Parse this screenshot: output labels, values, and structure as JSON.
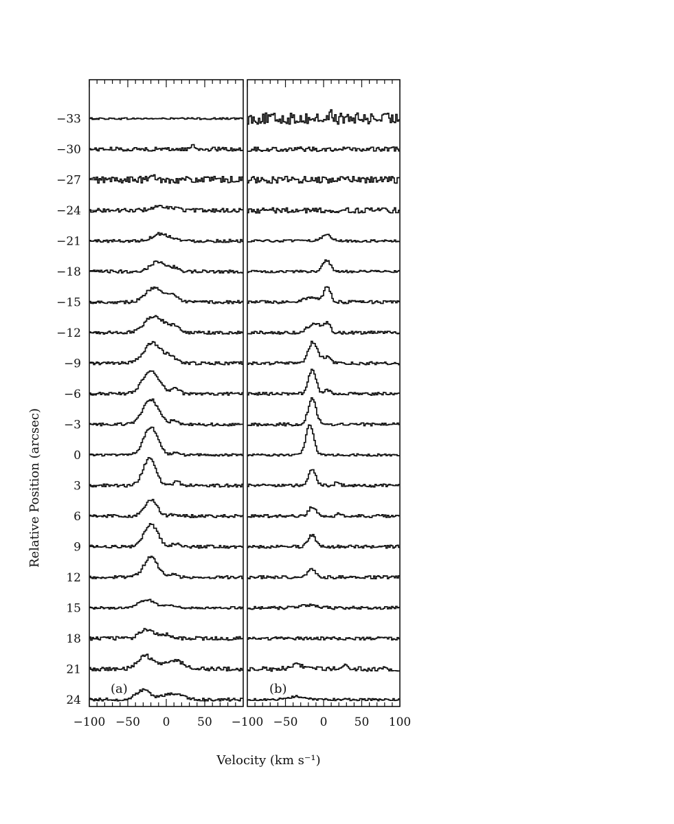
{
  "chart_data": {
    "type": "line",
    "style": "step",
    "xlabel": "Velocity (km s⁻¹)",
    "ylabel": "Relative Position (arcsec)",
    "xlim": [
      -100,
      100
    ],
    "x_tick_labels_panel_a": [
      "−100",
      "−50",
      "0",
      "50"
    ],
    "x_tick_labels_panel_b": [
      "−100",
      "−50",
      "0",
      "50",
      "100"
    ],
    "positions": [
      -33,
      -30,
      -27,
      -24,
      -21,
      -18,
      -15,
      -12,
      -9,
      -6,
      -3,
      0,
      3,
      6,
      9,
      12,
      15,
      18,
      21,
      24
    ],
    "position_tick_labels": [
      "−33",
      "−30",
      "−27",
      "−24",
      "−21",
      "−18",
      "−15",
      "−12",
      "−9",
      "−6",
      "−3",
      "0",
      "3",
      "6",
      "9",
      "12",
      "15",
      "18",
      "21",
      "24"
    ],
    "panels": [
      {
        "label": "(a)",
        "profiles": [
          {
            "position": -33,
            "noise": 0.12,
            "components": []
          },
          {
            "position": -30,
            "noise": 0.25,
            "components": [
              {
                "center": 35,
                "amp": 0.7,
                "width": 2
              }
            ]
          },
          {
            "position": -27,
            "noise": 0.45,
            "components": [
              {
                "center": -18,
                "amp": 0.8,
                "width": 2
              }
            ]
          },
          {
            "position": -24,
            "noise": 0.25,
            "components": [
              {
                "center": -10,
                "amp": 0.45,
                "width": 10
              },
              {
                "center": 12,
                "amp": 0.3,
                "width": 6
              }
            ]
          },
          {
            "position": -21,
            "noise": 0.2,
            "components": [
              {
                "center": -8,
                "amp": 0.95,
                "width": 10
              },
              {
                "center": 10,
                "amp": 0.25,
                "width": 6
              }
            ]
          },
          {
            "position": -18,
            "noise": 0.2,
            "components": [
              {
                "center": -10,
                "amp": 1.35,
                "width": 10
              },
              {
                "center": 12,
                "amp": 0.45,
                "width": 5
              }
            ]
          },
          {
            "position": -15,
            "noise": 0.2,
            "components": [
              {
                "center": -15,
                "amp": 1.95,
                "width": 11
              },
              {
                "center": 8,
                "amp": 0.75,
                "width": 7
              }
            ]
          },
          {
            "position": -12,
            "noise": 0.2,
            "components": [
              {
                "center": -16,
                "amp": 2.2,
                "width": 12
              },
              {
                "center": 10,
                "amp": 0.8,
                "width": 8
              }
            ]
          },
          {
            "position": -9,
            "noise": 0.2,
            "components": [
              {
                "center": -18,
                "amp": 2.65,
                "width": 11
              },
              {
                "center": 6,
                "amp": 0.8,
                "width": 8
              }
            ]
          },
          {
            "position": -6,
            "noise": 0.2,
            "components": [
              {
                "center": -20,
                "amp": 2.9,
                "width": 11
              },
              {
                "center": 12,
                "amp": 0.7,
                "width": 5
              }
            ]
          },
          {
            "position": -3,
            "noise": 0.2,
            "components": [
              {
                "center": -20,
                "amp": 3.3,
                "width": 10
              },
              {
                "center": 10,
                "amp": 0.5,
                "width": 4
              }
            ]
          },
          {
            "position": 0,
            "noise": 0.15,
            "components": [
              {
                "center": -20,
                "amp": 3.7,
                "width": 9
              },
              {
                "center": 12,
                "amp": 0.4,
                "width": 3
              }
            ]
          },
          {
            "position": 3,
            "noise": 0.2,
            "components": [
              {
                "center": -22,
                "amp": 3.6,
                "width": 8
              },
              {
                "center": 14,
                "amp": 0.6,
                "width": 4
              }
            ]
          },
          {
            "position": 6,
            "noise": 0.2,
            "components": [
              {
                "center": -20,
                "amp": 2.2,
                "width": 8
              },
              {
                "center": 10,
                "amp": 0.25,
                "width": 4
              }
            ]
          },
          {
            "position": 9,
            "noise": 0.2,
            "components": [
              {
                "center": -20,
                "amp": 2.95,
                "width": 9
              },
              {
                "center": 12,
                "amp": 0.4,
                "width": 4
              }
            ]
          },
          {
            "position": 12,
            "noise": 0.2,
            "components": [
              {
                "center": -20,
                "amp": 2.65,
                "width": 9
              },
              {
                "center": 10,
                "amp": 0.4,
                "width": 4
              }
            ]
          },
          {
            "position": 15,
            "noise": 0.15,
            "components": [
              {
                "center": -25,
                "amp": 1.05,
                "width": 10
              },
              {
                "center": 5,
                "amp": 0.3,
                "width": 8
              }
            ]
          },
          {
            "position": 18,
            "noise": 0.25,
            "components": [
              {
                "center": -25,
                "amp": 1.2,
                "width": 9
              },
              {
                "center": 0,
                "amp": 0.5,
                "width": 8
              }
            ]
          },
          {
            "position": 21,
            "noise": 0.25,
            "components": [
              {
                "center": -28,
                "amp": 1.75,
                "width": 9
              },
              {
                "center": 8,
                "amp": 1.15,
                "width": 14
              }
            ]
          },
          {
            "position": 24,
            "noise": 0.2,
            "components": [
              {
                "center": -30,
                "amp": 1.25,
                "width": 9
              },
              {
                "center": 8,
                "amp": 0.8,
                "width": 12
              }
            ]
          }
        ]
      },
      {
        "label": "(b)",
        "profiles": [
          {
            "position": -33,
            "noise": 0.75,
            "components": [
              {
                "center": 10,
                "amp": 1.5,
                "width": 1
              }
            ]
          },
          {
            "position": -30,
            "noise": 0.3,
            "components": []
          },
          {
            "position": -27,
            "noise": 0.45,
            "components": []
          },
          {
            "position": -24,
            "noise": 0.35,
            "components": []
          },
          {
            "position": -21,
            "noise": 0.15,
            "components": [
              {
                "center": 4,
                "amp": 0.9,
                "width": 6
              }
            ]
          },
          {
            "position": -18,
            "noise": 0.15,
            "components": [
              {
                "center": 4,
                "amp": 1.45,
                "width": 5
              }
            ]
          },
          {
            "position": -15,
            "noise": 0.2,
            "components": [
              {
                "center": -15,
                "amp": 0.65,
                "width": 10
              },
              {
                "center": 5,
                "amp": 2.1,
                "width": 4
              }
            ]
          },
          {
            "position": -12,
            "noise": 0.2,
            "components": [
              {
                "center": -12,
                "amp": 1.2,
                "width": 9
              },
              {
                "center": 5,
                "amp": 1.05,
                "width": 4
              }
            ]
          },
          {
            "position": -9,
            "noise": 0.2,
            "components": [
              {
                "center": -14,
                "amp": 2.8,
                "width": 6
              },
              {
                "center": 4,
                "amp": 0.8,
                "width": 5
              }
            ]
          },
          {
            "position": -6,
            "noise": 0.2,
            "components": [
              {
                "center": -15,
                "amp": 3.2,
                "width": 5
              },
              {
                "center": 5,
                "amp": 0.5,
                "width": 4
              }
            ]
          },
          {
            "position": -3,
            "noise": 0.2,
            "components": [
              {
                "center": -15,
                "amp": 3.6,
                "width": 5
              }
            ]
          },
          {
            "position": 0,
            "noise": 0.15,
            "components": [
              {
                "center": -18,
                "amp": 4.1,
                "width": 5
              }
            ]
          },
          {
            "position": 3,
            "noise": 0.2,
            "components": [
              {
                "center": -15,
                "amp": 2.0,
                "width": 5
              },
              {
                "center": 18,
                "amp": 0.5,
                "width": 3
              }
            ]
          },
          {
            "position": 6,
            "noise": 0.2,
            "components": [
              {
                "center": -15,
                "amp": 1.15,
                "width": 5
              },
              {
                "center": 20,
                "amp": 0.4,
                "width": 3
              }
            ]
          },
          {
            "position": 9,
            "noise": 0.2,
            "components": [
              {
                "center": -15,
                "amp": 1.55,
                "width": 5
              }
            ]
          },
          {
            "position": 12,
            "noise": 0.2,
            "components": [
              {
                "center": -15,
                "amp": 1.05,
                "width": 5
              }
            ]
          },
          {
            "position": 15,
            "noise": 0.2,
            "components": [
              {
                "center": -18,
                "amp": 0.35,
                "width": 10
              }
            ]
          },
          {
            "position": 18,
            "noise": 0.2,
            "components": []
          },
          {
            "position": 21,
            "noise": 0.3,
            "components": [
              {
                "center": -35,
                "amp": 0.6,
                "width": 8
              },
              {
                "center": 30,
                "amp": 0.4,
                "width": 3
              }
            ]
          },
          {
            "position": 24,
            "noise": 0.15,
            "components": [
              {
                "center": -35,
                "amp": 0.4,
                "width": 12
              }
            ]
          }
        ]
      }
    ]
  }
}
